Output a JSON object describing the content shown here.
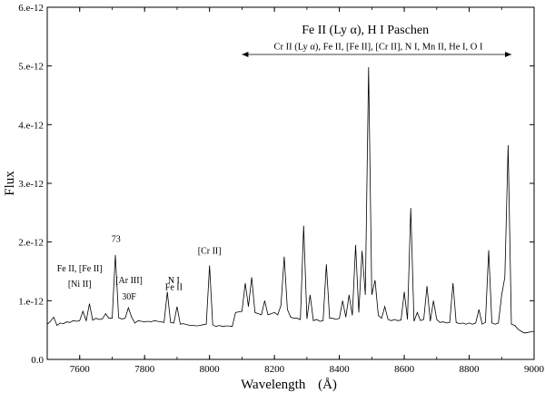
{
  "chart_data": {
    "type": "line",
    "xlabel": "Wavelength",
    "xunit": "(Å)",
    "ylabel": "Flux",
    "xlim": [
      7500,
      9000
    ],
    "ylim": [
      0,
      6e-12
    ],
    "xticks": [
      {
        "v": 7600,
        "label": "7600"
      },
      {
        "v": 7800,
        "label": "7800"
      },
      {
        "v": 8000,
        "label": "8000"
      },
      {
        "v": 8200,
        "label": "8200"
      },
      {
        "v": 8400,
        "label": "8400"
      },
      {
        "v": 8600,
        "label": "8600"
      },
      {
        "v": 8800,
        "label": "8800"
      },
      {
        "v": 9000,
        "label": "9000"
      }
    ],
    "yticks": [
      {
        "v": 0,
        "label": "0.0"
      },
      {
        "v": 1e-12,
        "label": "1.e-12"
      },
      {
        "v": 2e-12,
        "label": "2.e-12"
      },
      {
        "v": 3e-12,
        "label": "3.e-12"
      },
      {
        "v": 4e-12,
        "label": "4.e-12"
      },
      {
        "v": 5e-12,
        "label": "5.e-12"
      },
      {
        "v": 6e-12,
        "label": "6.e-12"
      }
    ],
    "series": [
      {
        "x": [
          7500,
          7510,
          7520,
          7530,
          7540,
          7550,
          7560,
          7570,
          7580,
          7590,
          7600,
          7610,
          7620,
          7630,
          7640,
          7650,
          7660,
          7670,
          7680,
          7690,
          7700,
          7710,
          7720,
          7730,
          7740,
          7750,
          7760,
          7770,
          7780,
          7790,
          7800,
          7810,
          7820,
          7830,
          7840,
          7850,
          7860,
          7870,
          7880,
          7890,
          7900,
          7910,
          7920,
          7930,
          7940,
          7950,
          7960,
          7970,
          7980,
          7990,
          8000,
          8010,
          8020,
          8030,
          8040,
          8050,
          8060,
          8070,
          8080,
          8090,
          8100,
          8110,
          8120,
          8130,
          8140,
          8150,
          8160,
          8170,
          8180,
          8190,
          8200,
          8210,
          8220,
          8230,
          8240,
          8250,
          8260,
          8270,
          8280,
          8290,
          8300,
          8310,
          8320,
          8330,
          8340,
          8350,
          8360,
          8370,
          8380,
          8390,
          8400,
          8410,
          8420,
          8430,
          8440,
          8450,
          8460,
          8470,
          8480,
          8490,
          8500,
          8510,
          8520,
          8530,
          8540,
          8550,
          8560,
          8570,
          8580,
          8590,
          8600,
          8610,
          8620,
          8630,
          8640,
          8650,
          8660,
          8670,
          8680,
          8690,
          8700,
          8710,
          8720,
          8730,
          8740,
          8750,
          8760,
          8770,
          8780,
          8790,
          8800,
          8810,
          8820,
          8830,
          8840,
          8850,
          8860,
          8870,
          8880,
          8890,
          8900,
          8910,
          8920,
          8930,
          8940,
          8950,
          8960,
          8970,
          8980,
          8990,
          9000
        ],
        "y": [
          6e-13,
          6.5e-13,
          7.2e-13,
          5.8e-13,
          6.2e-13,
          6.1e-13,
          6.4e-13,
          6.3e-13,
          6.6e-13,
          6.5e-13,
          6.6e-13,
          8.2e-13,
          6.6e-13,
          9.5e-13,
          6.7e-13,
          7e-13,
          6.8e-13,
          6.9e-13,
          7.8e-13,
          7e-13,
          7e-13,
          1.78e-12,
          7.1e-13,
          6.9e-13,
          7e-13,
          8.8e-13,
          7.2e-13,
          6.2e-13,
          6.6e-13,
          6.5e-13,
          6.4e-13,
          6.5e-13,
          6.4e-13,
          6.6e-13,
          6.5e-13,
          6.4e-13,
          6.3e-13,
          1.15e-12,
          6.3e-13,
          6.2e-13,
          9e-13,
          6e-13,
          6.1e-13,
          5.9e-13,
          5.8e-13,
          5.8e-13,
          5.7e-13,
          5.8e-13,
          5.9e-13,
          6e-13,
          1.6e-12,
          5.9e-13,
          5.6e-13,
          5.8e-13,
          5.6e-13,
          5.7e-13,
          5.7e-13,
          5.6e-13,
          8e-13,
          8.1e-13,
          8.2e-13,
          1.3e-12,
          9e-13,
          1.4e-12,
          8e-13,
          7.8e-13,
          7.6e-13,
          1e-12,
          7.6e-13,
          7.8e-13,
          8e-13,
          7.6e-13,
          9.2e-13,
          1.75e-12,
          8.5e-13,
          7.2e-13,
          7e-13,
          7e-13,
          6.8e-13,
          2.28e-12,
          6.9e-13,
          1.1e-12,
          6.6e-13,
          6.8e-13,
          6.5e-13,
          6.6e-13,
          1.62e-12,
          7e-13,
          7e-13,
          6.8e-13,
          7e-13,
          1e-12,
          7.2e-13,
          1.1e-12,
          7.5e-13,
          1.95e-12,
          8e-13,
          1.85e-12,
          1.1e-12,
          4.98e-12,
          1.1e-12,
          1.35e-12,
          7.5e-13,
          7e-13,
          9e-13,
          6.8e-13,
          6.6e-13,
          6.8e-13,
          6.6e-13,
          6.7e-13,
          1.15e-12,
          6.8e-13,
          2.58e-12,
          6.5e-13,
          8e-13,
          6.6e-13,
          6.8e-13,
          1.25e-12,
          6.5e-13,
          1e-12,
          6.8e-13,
          6.3e-13,
          6.4e-13,
          6.2e-13,
          6.3e-13,
          1.3e-12,
          6.3e-13,
          6.1e-13,
          6.2e-13,
          6e-13,
          6.2e-13,
          6e-13,
          6.2e-13,
          8.5e-13,
          6e-13,
          6.3e-13,
          1.86e-12,
          6.2e-13,
          6e-13,
          6.2e-13,
          1.1e-12,
          1.4e-12,
          3.65e-12,
          6e-13,
          5.8e-13,
          5.2e-13,
          4.8e-13,
          4.5e-13,
          4.6e-13,
          4.7e-13,
          4.8e-13
        ]
      }
    ],
    "annotations": [
      {
        "text": "Fe II, [Fe II]",
        "x": 7600,
        "y": 1.5e-12
      },
      {
        "text": "[Ni II]",
        "x": 7600,
        "y": 1.24e-12
      },
      {
        "text": "73",
        "x": 7712,
        "y": 2e-12
      },
      {
        "text": "[Ar III]",
        "x": 7752,
        "y": 1.3e-12
      },
      {
        "text": "30F",
        "x": 7752,
        "y": 1.02e-12
      },
      {
        "text": "Fe II",
        "x": 7890,
        "y": 1.18e-12
      },
      {
        "text": "N I",
        "x": 7890,
        "y": 1.3e-12
      },
      {
        "text": "[Cr II]",
        "x": 8000,
        "y": 1.8e-12
      },
      {
        "text": "Fe II (Ly α), H I Paschen",
        "x": 8480,
        "y": 5.55e-12
      },
      {
        "text": "Cr II (Ly α), Fe II, [Fe II], [Cr II], N I, Mn II, He I, O I",
        "x": 8520,
        "y": 5.28e-12
      }
    ],
    "range_arrow": [
      8100,
      8930
    ],
    "grid": false,
    "legend": "none"
  }
}
